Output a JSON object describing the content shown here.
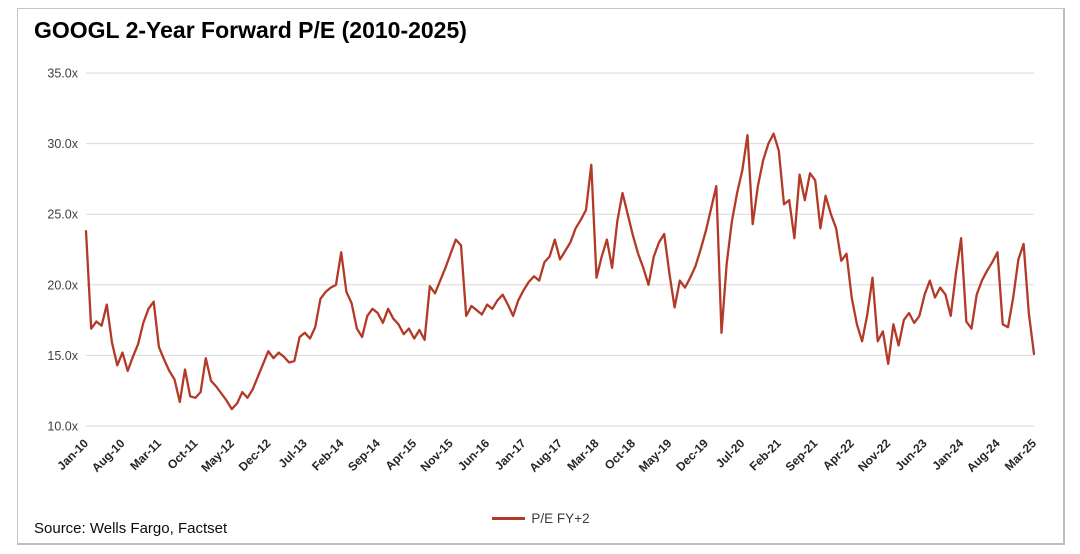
{
  "title": "GOOGL 2-Year Forward P/E (2010-2025)",
  "source": "Source: Wells Fargo, Factset",
  "legend": {
    "label": "P/E FY+2"
  },
  "colors": {
    "line": "#b23a27",
    "grid": "#d9d9d9",
    "y_label_text": "#404040",
    "x_label_text": "#262626",
    "card_border": "#c6c6c6"
  },
  "chart_data": {
    "type": "line",
    "title": "GOOGL 2-Year Forward P/E (2010-2025)",
    "xlabel": "",
    "ylabel": "",
    "ylim": [
      10,
      35
    ],
    "y_ticks": [
      10,
      15,
      20,
      25,
      30,
      35
    ],
    "y_tick_format": "{v}.0x",
    "grid": "horizontal",
    "legend_position": "bottom-center",
    "x_unit": "month",
    "x_start": "Jan-10",
    "x_end": "Mar-25",
    "x_tick_every_months": 7,
    "x_tick_labels": [
      "Jan-10",
      "Aug-10",
      "Mar-11",
      "Oct-11",
      "May-12",
      "Dec-12",
      "Jul-13",
      "Feb-14",
      "Sep-14",
      "Apr-15",
      "Nov-15",
      "Jun-16",
      "Jan-17",
      "Aug-17",
      "Mar-18",
      "Oct-18",
      "May-19",
      "Dec-19",
      "Jul-20",
      "Feb-21",
      "Sep-21",
      "Apr-22",
      "Nov-22",
      "Jun-23",
      "Jan-24",
      "Aug-24",
      "Mar-25"
    ],
    "series": [
      {
        "name": "P/E FY+2",
        "values": [
          23.8,
          16.9,
          17.4,
          17.1,
          18.6,
          15.9,
          14.3,
          15.2,
          13.9,
          14.9,
          15.8,
          17.3,
          18.3,
          18.8,
          15.6,
          14.7,
          13.9,
          13.3,
          11.7,
          14.0,
          12.1,
          12.0,
          12.4,
          14.8,
          13.2,
          12.8,
          12.3,
          11.8,
          11.2,
          11.6,
          12.4,
          12.0,
          12.6,
          13.5,
          14.4,
          15.3,
          14.8,
          15.2,
          14.9,
          14.5,
          14.6,
          16.3,
          16.6,
          16.2,
          17.0,
          19.0,
          19.5,
          19.8,
          20.0,
          22.3,
          19.5,
          18.7,
          16.9,
          16.3,
          17.8,
          18.3,
          18.0,
          17.3,
          18.3,
          17.6,
          17.2,
          16.5,
          16.9,
          16.2,
          16.8,
          16.1,
          19.9,
          19.4,
          20.3,
          21.2,
          22.2,
          23.2,
          22.8,
          17.8,
          18.5,
          18.2,
          17.9,
          18.6,
          18.3,
          18.9,
          19.3,
          18.6,
          17.8,
          18.9,
          19.6,
          20.2,
          20.6,
          20.3,
          21.6,
          22.0,
          23.2,
          21.8,
          22.4,
          23.0,
          24.0,
          24.6,
          25.3,
          28.5,
          20.5,
          22.0,
          23.2,
          21.2,
          24.5,
          26.5,
          25.0,
          23.5,
          22.2,
          21.2,
          20.0,
          22.0,
          23.0,
          23.6,
          20.8,
          18.4,
          20.3,
          19.8,
          20.5,
          21.3,
          22.5,
          23.8,
          25.4,
          27.0,
          16.6,
          21.5,
          24.5,
          26.5,
          28.1,
          30.6,
          24.3,
          27.0,
          28.8,
          30.0,
          30.7,
          29.5,
          25.7,
          26.0,
          23.3,
          27.8,
          26.0,
          27.9,
          27.4,
          24.0,
          26.3,
          25.0,
          24.0,
          21.7,
          22.2,
          19.1,
          17.2,
          16.0,
          17.9,
          20.5,
          16.0,
          16.7,
          14.4,
          17.2,
          15.7,
          17.5,
          18.0,
          17.3,
          17.8,
          19.3,
          20.3,
          19.1,
          19.8,
          19.3,
          17.8,
          20.8,
          23.3,
          17.4,
          16.9,
          19.3,
          20.3,
          21.0,
          21.6,
          22.3,
          17.2,
          17.0,
          19.1,
          21.8,
          22.9,
          18.0,
          15.1
        ]
      }
    ]
  }
}
